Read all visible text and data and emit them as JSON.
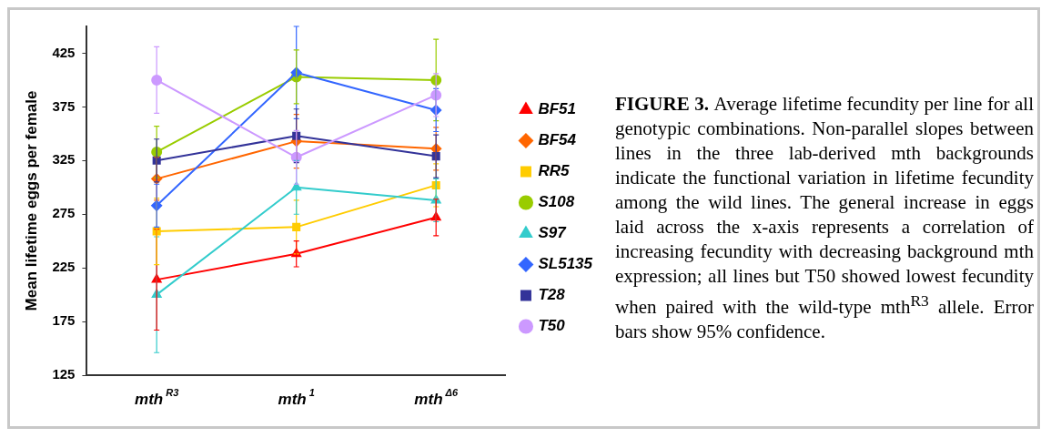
{
  "chart_data": {
    "type": "line",
    "ylabel": "Mean lifetime eggs per female",
    "categories": [
      "mth$^{R3}$",
      "mth$^{1}$",
      "mth$^{Δ6}$"
    ],
    "ylim": [
      125,
      450
    ],
    "yticks": [
      125,
      175,
      225,
      275,
      325,
      375,
      425
    ],
    "grid": false,
    "legend": "right",
    "series": [
      {
        "name": "BF51",
        "color": "#ff0000",
        "marker": "triangle",
        "values": [
          214,
          238,
          272
        ],
        "errors": [
          47,
          12,
          17
        ]
      },
      {
        "name": "BF54",
        "color": "#ff6600",
        "marker": "diamond",
        "values": [
          308,
          343,
          336
        ],
        "errors": [
          20,
          25,
          20
        ]
      },
      {
        "name": "RR5",
        "color": "#ffcc00",
        "marker": "square",
        "values": [
          259,
          263,
          302
        ],
        "errors": [
          31,
          25,
          20
        ]
      },
      {
        "name": "S108",
        "color": "#99cc00",
        "marker": "circle",
        "values": [
          333,
          403,
          400
        ],
        "errors": [
          24,
          25,
          38
        ]
      },
      {
        "name": "S97",
        "color": "#33cccc",
        "marker": "triangle",
        "values": [
          200,
          300,
          288
        ],
        "errors": [
          54,
          25,
          20
        ]
      },
      {
        "name": "SL5135",
        "color": "#3366ff",
        "marker": "diamond",
        "values": [
          283,
          407,
          372
        ],
        "errors": [
          20,
          43,
          20
        ]
      },
      {
        "name": "T28",
        "color": "#333399",
        "marker": "square",
        "values": [
          325,
          348,
          329
        ],
        "errors": [
          20,
          25,
          20
        ]
      },
      {
        "name": "T50",
        "color": "#cc99ff",
        "marker": "circle",
        "values": [
          400,
          328,
          386
        ],
        "errors": [
          31,
          25,
          20
        ]
      }
    ],
    "annotations": [
      "FIGURE 3.",
      "Average lifetime fecundity per line for all genotypic combinations. Non-parallel slopes between lines in the three lab-derived mth backgrounds indicate the functional variation in lifetime fecundity among the wild lines. The general increase in eggs laid across the x-axis represents a correlation of increasing fecundity with decreasing background mth expression; all lines but T50 showed lowest fecundity when paired with the wild-type mth$^{R3}$ allele.  Error bars show 95% confidence."
    ]
  }
}
